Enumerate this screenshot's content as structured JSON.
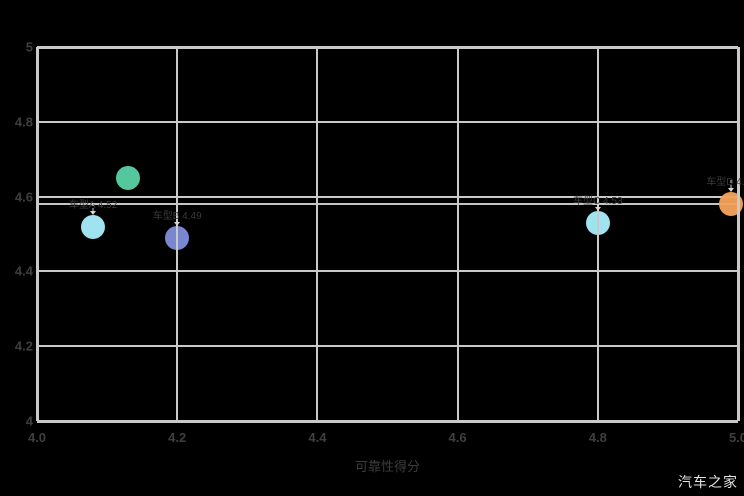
{
  "watermark": "汽车之家",
  "chart_data": {
    "type": "scatter",
    "title": "",
    "xlabel": "可靠性得分",
    "ylabel": "",
    "xlim": [
      4.0,
      5.0
    ],
    "ylim": [
      4.0,
      5.0
    ],
    "grid": true,
    "legend": "none",
    "background": "#000000",
    "gridline_color": "#c9c9c9",
    "tick_label_color": "#3f3f3f",
    "x_tick_values": [
      4.0,
      4.2,
      4.4,
      4.6,
      4.8,
      5.0
    ],
    "x_tick_labels": [
      "4.0",
      "4.2",
      "4.4",
      "4.6",
      "4.8",
      "5.0"
    ],
    "y_tick_values": [
      5.0,
      4.8,
      4.6,
      4.4,
      4.2,
      4.0
    ],
    "y_tick_labels": [
      "5",
      "4.8",
      "4.6",
      "4.4",
      "4.2",
      "4"
    ],
    "reference_line_y": 4.58,
    "points": [
      {
        "name": "green-point",
        "x": 4.13,
        "y": 4.65,
        "color": "#57CFA4",
        "label": "",
        "arrow": false
      },
      {
        "name": "cyan-point-left",
        "x": 4.08,
        "y": 4.52,
        "color": "#A6ECFA",
        "label": "车型A 4.52",
        "arrow": true
      },
      {
        "name": "purple-point",
        "x": 4.2,
        "y": 4.49,
        "color": "#7E8BD8",
        "label": "车型B 4.49",
        "arrow": true
      },
      {
        "name": "cyan-point-right",
        "x": 4.8,
        "y": 4.53,
        "color": "#A6ECFA",
        "label": "车型C 4.53",
        "arrow": true
      },
      {
        "name": "orange-point",
        "x": 4.99,
        "y": 4.58,
        "color": "#F2A25C",
        "label": "车型D 4.58",
        "arrow": true
      }
    ]
  }
}
